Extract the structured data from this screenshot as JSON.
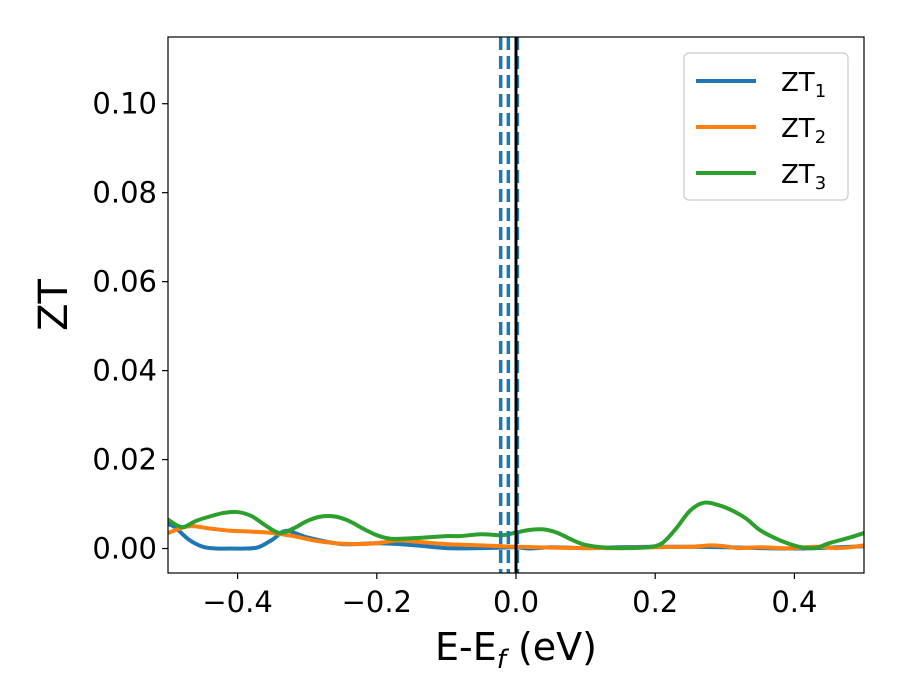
{
  "chart_data": {
    "type": "line",
    "xlabel": {
      "main": "E-E",
      "sub": "f",
      "unit": " (eV)"
    },
    "ylabel": "ZT",
    "xlim": [
      -0.5,
      0.5
    ],
    "ylim": [
      -0.0055,
      0.115
    ],
    "xticks": [
      -0.4,
      -0.2,
      0.0,
      0.2,
      0.4
    ],
    "xtick_labels": [
      "−0.4",
      "−0.2",
      "0.0",
      "0.2",
      "0.4"
    ],
    "yticks": [
      0.0,
      0.02,
      0.04,
      0.06,
      0.08,
      0.1
    ],
    "ytick_labels": [
      "0.00",
      "0.02",
      "0.04",
      "0.06",
      "0.08",
      "0.10"
    ],
    "grid": false,
    "legend_position": "top-right",
    "vertical_lines": [
      {
        "x": -0.022,
        "style": "dashed",
        "color": "#1f77b4"
      },
      {
        "x": -0.011,
        "style": "dashed",
        "color": "#1f77b4"
      },
      {
        "x": 0.002,
        "style": "dashed",
        "color": "#1f77b4"
      },
      {
        "x": 0.0,
        "style": "solid",
        "color": "#000000"
      }
    ],
    "series": [
      {
        "name": {
          "main": "ZT",
          "sub": "1"
        },
        "color": "#1f77b4",
        "x": [
          -0.5,
          -0.49,
          -0.47,
          -0.45,
          -0.43,
          -0.41,
          -0.39,
          -0.37,
          -0.35,
          -0.33,
          -0.3,
          -0.25,
          -0.2,
          -0.15,
          -0.1,
          -0.05,
          -0.02,
          0.0,
          0.02,
          0.05,
          0.1,
          0.15,
          0.2,
          0.25,
          0.3,
          0.35,
          0.4,
          0.45,
          0.5
        ],
        "y": [
          0.0055,
          0.0048,
          0.002,
          0.0004,
          0.0,
          0.0,
          0.0,
          0.0003,
          0.002,
          0.004,
          0.0025,
          0.001,
          0.0012,
          0.0008,
          0.0001,
          0.0001,
          0.0002,
          0.0003,
          0.0,
          0.0003,
          0.0001,
          0.0003,
          0.0004,
          0.0004,
          0.0003,
          0.0001,
          0.0,
          0.0002,
          0.0005
        ]
      },
      {
        "name": {
          "main": "ZT",
          "sub": "2"
        },
        "color": "#ff7f0e",
        "x": [
          -0.5,
          -0.47,
          -0.44,
          -0.41,
          -0.38,
          -0.35,
          -0.32,
          -0.29,
          -0.26,
          -0.23,
          -0.2,
          -0.17,
          -0.14,
          -0.1,
          -0.05,
          0.0,
          0.05,
          0.1,
          0.15,
          0.2,
          0.25,
          0.28,
          0.3,
          0.32,
          0.35,
          0.38,
          0.4,
          0.43,
          0.46,
          0.48,
          0.5
        ],
        "y": [
          0.0035,
          0.005,
          0.0045,
          0.004,
          0.0038,
          0.0035,
          0.0028,
          0.0018,
          0.0012,
          0.001,
          0.0012,
          0.0018,
          0.0015,
          0.001,
          0.0007,
          0.0004,
          0.0002,
          0.0001,
          0.0001,
          0.0003,
          0.0004,
          0.0007,
          0.0005,
          0.0001,
          0.0003,
          0.0001,
          0.0001,
          0.0004,
          0.0001,
          0.0003,
          0.0007
        ]
      },
      {
        "name": {
          "main": "ZT",
          "sub": "3"
        },
        "color": "#2ca02c",
        "x": [
          -0.5,
          -0.48,
          -0.46,
          -0.44,
          -0.42,
          -0.4,
          -0.38,
          -0.36,
          -0.34,
          -0.32,
          -0.3,
          -0.28,
          -0.26,
          -0.24,
          -0.22,
          -0.2,
          -0.18,
          -0.15,
          -0.12,
          -0.1,
          -0.08,
          -0.05,
          -0.02,
          0.0,
          0.02,
          0.04,
          0.06,
          0.08,
          0.1,
          0.13,
          0.16,
          0.19,
          0.21,
          0.23,
          0.25,
          0.27,
          0.29,
          0.31,
          0.33,
          0.35,
          0.37,
          0.39,
          0.41,
          0.43,
          0.45,
          0.48,
          0.5
        ],
        "y": [
          0.0065,
          0.0048,
          0.0062,
          0.0072,
          0.008,
          0.0082,
          0.0073,
          0.0052,
          0.0035,
          0.0045,
          0.0062,
          0.0072,
          0.0072,
          0.0062,
          0.0045,
          0.003,
          0.0022,
          0.0023,
          0.0026,
          0.0028,
          0.0028,
          0.0032,
          0.003,
          0.0036,
          0.0042,
          0.0043,
          0.0035,
          0.002,
          0.0008,
          0.0002,
          0.0001,
          0.0003,
          0.0012,
          0.0045,
          0.0085,
          0.0103,
          0.0098,
          0.0086,
          0.0068,
          0.0042,
          0.0025,
          0.0012,
          0.0003,
          0.0001,
          0.0012,
          0.0025,
          0.0035
        ]
      }
    ]
  }
}
